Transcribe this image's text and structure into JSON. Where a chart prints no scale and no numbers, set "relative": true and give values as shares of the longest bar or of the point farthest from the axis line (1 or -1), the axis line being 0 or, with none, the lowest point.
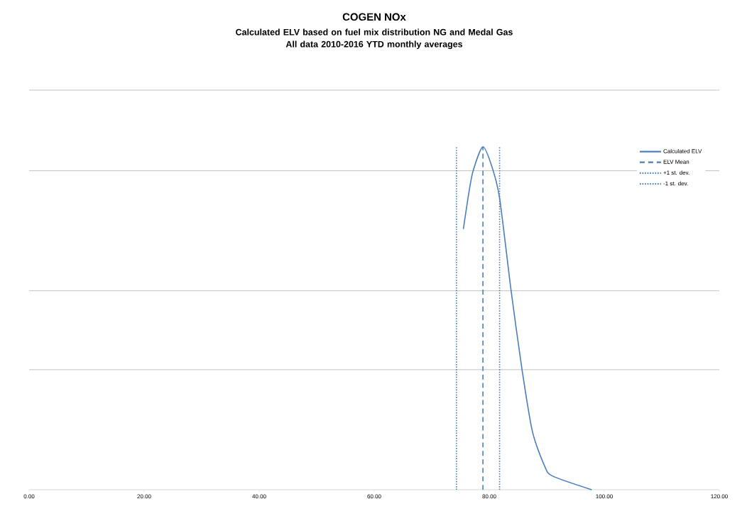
{
  "chart_data": {
    "type": "line",
    "title": "COGEN NOx",
    "subtitle": "Calculated ELV based on fuel mix distribution NG and Medal Gas\nAll data 2010-2016 YTD monthly averages",
    "relative": true,
    "x": [
      75.5,
      76.4,
      77.2,
      78.9,
      80.5,
      81.8,
      83.8,
      85.7,
      87.5,
      89.6,
      91.0,
      97.8
    ],
    "series": [
      {
        "name": "Calculated ELV",
        "color": "#4a7ebb",
        "values": [
          0.76,
          0.86,
          0.93,
          1,
          0.94,
          0.85,
          0.58,
          0.35,
          0.17,
          0.07,
          0.04,
          0
        ]
      },
      {
        "name": "ELV Mean",
        "color": "#4a7ebb",
        "type": "line",
        "line_style": "dashed",
        "x": [
          78.9,
          78.9
        ],
        "values": [
          0,
          1
        ]
      },
      {
        "name": "+1 st. dev.",
        "color": "#4a7ebb",
        "type": "line",
        "line_style": "dotted",
        "x": [
          81.8,
          81.8
        ],
        "values": [
          0,
          1
        ]
      },
      {
        "name": "-1 st. dev.",
        "color": "#4a7ebb",
        "type": "line",
        "line_style": "dotted",
        "x": [
          74.3,
          74.3
        ],
        "values": [
          0,
          1
        ]
      }
    ],
    "xlim": [
      0,
      120
    ],
    "xticks": [
      {
        "value": 0,
        "label": "0.00"
      },
      {
        "value": 20,
        "label": "20.00"
      },
      {
        "value": 40,
        "label": "40.00"
      },
      {
        "value": 60,
        "label": "60.00"
      },
      {
        "value": 80,
        "label": "80.00"
      },
      {
        "value": 100,
        "label": "100.00"
      },
      {
        "value": 120,
        "label": "120.00"
      }
    ],
    "grid": "y",
    "tick_labels": "x",
    "legend": "top right",
    "marker": "none",
    "line_style": "solid"
  }
}
